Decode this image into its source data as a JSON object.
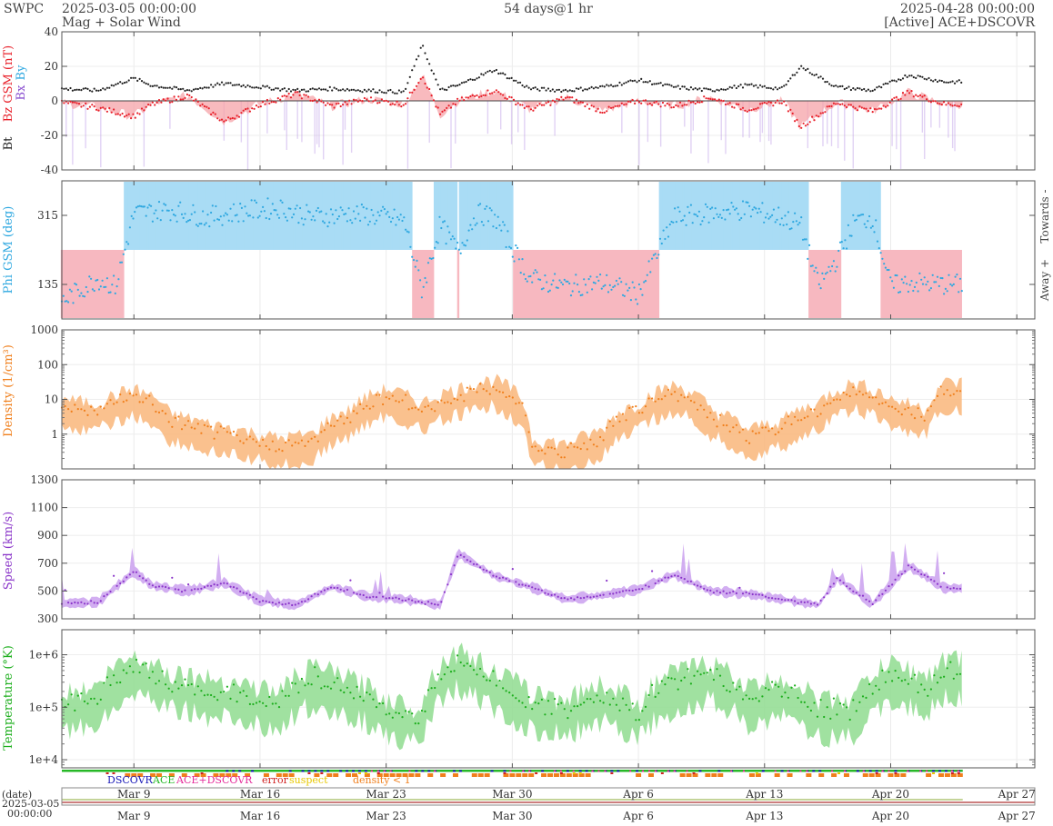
{
  "header": {
    "org": "SWPC",
    "start_time": "2025-03-05 00:00:00",
    "subtitle": "Mag + Solar Wind",
    "span": "54 days@1 hr",
    "end_time": "2025-04-28 00:00:00",
    "source": "[Active] ACE+DSCOVR"
  },
  "colors": {
    "bt": "#222222",
    "bz": "#e8202a",
    "bz_fill": "#f6a3a8",
    "by": "#a97fe0",
    "bx": "#8a4fd0",
    "phi": "#2fa8e0",
    "phi_toward": "#a9dcf5",
    "phi_away": "#f7b8c0",
    "density": "#f07f1c",
    "density_fill": "#f9b67a",
    "speed": "#8a35c9",
    "speed_fill": "#caa0ef",
    "temperature": "#1cae1c",
    "temperature_fill": "#8fdc8f",
    "dscovr": "#1a1ab8",
    "ace": "#27b827",
    "ace_dscovr": "#e52c9b",
    "error": "#d02020",
    "suspect": "#e8c800",
    "density_lt1": "#f07f1c"
  },
  "chart_data": [
    {
      "type": "line",
      "panel": "mag",
      "ylabels": [
        "Bt",
        "Bz GSM (nT)",
        "Bx",
        "By"
      ],
      "ylim": [
        -40,
        40
      ],
      "yticks": [
        "40",
        "20",
        "0",
        "-20",
        "-40"
      ],
      "x_days": [
        0,
        2,
        4,
        5,
        7,
        9,
        11,
        13,
        15,
        17,
        19,
        20,
        21,
        22,
        24,
        26,
        28,
        30,
        32,
        34,
        36,
        38,
        40,
        41,
        43,
        45,
        47,
        49
      ],
      "series": [
        {
          "name": "Bt",
          "values": [
            7,
            6,
            13,
            9,
            6,
            10,
            8,
            6,
            7,
            6,
            5,
            32,
            6,
            9,
            18,
            7,
            6,
            8,
            12,
            8,
            6,
            9,
            7,
            20,
            8,
            6,
            15,
            11
          ]
        },
        {
          "name": "Bz",
          "values": [
            -1,
            -4,
            -9,
            -2,
            3,
            -12,
            -2,
            4,
            -3,
            1,
            -2,
            15,
            -8,
            0,
            6,
            -5,
            2,
            -6,
            0,
            -3,
            2,
            -5,
            0,
            -15,
            -1,
            -6,
            5,
            -2
          ]
        }
      ],
      "grid": true
    },
    {
      "type": "scatter",
      "panel": "phi",
      "ylabel": "Phi GSM (deg)",
      "yticks": [
        "315",
        "135"
      ],
      "ylim": [
        45,
        405
      ],
      "side_labels": [
        "Towards -",
        "Away +"
      ],
      "x_days": [
        0,
        1,
        2,
        3,
        4,
        6,
        8,
        10,
        12,
        14,
        16,
        17,
        18,
        19,
        20,
        21,
        22,
        23,
        24,
        26,
        28,
        30,
        32,
        34,
        36,
        38,
        40,
        41,
        42,
        43,
        44,
        45,
        46,
        47,
        49
      ],
      "values": [
        90,
        120,
        150,
        130,
        320,
        330,
        310,
        325,
        335,
        310,
        320,
        315,
        310,
        300,
        120,
        290,
        220,
        320,
        310,
        150,
        130,
        140,
        110,
        310,
        320,
        330,
        310,
        290,
        130,
        200,
        300,
        310,
        130,
        140,
        135
      ]
    },
    {
      "type": "line",
      "panel": "density",
      "ylabel": "Density (1/cm³)",
      "yscale": "log",
      "ylim": [
        0.1,
        1000
      ],
      "yticks": [
        "1000",
        "100",
        "10",
        "1"
      ],
      "x_days": [
        0,
        2,
        4,
        6,
        8,
        10,
        12,
        14,
        16,
        18,
        20,
        22,
        24,
        26,
        28,
        30,
        32,
        34,
        36,
        38,
        40,
        42,
        44,
        46,
        48,
        49
      ],
      "values": [
        4,
        3,
        8,
        1.5,
        0.8,
        0.5,
        0.3,
        0.4,
        2,
        8,
        3,
        8,
        15,
        0.3,
        0.2,
        0.5,
        3,
        10,
        2,
        0.5,
        1,
        3,
        12,
        4,
        2,
        12
      ]
    },
    {
      "type": "line",
      "panel": "speed",
      "ylabel": "Speed (km/s)",
      "ylim": [
        300,
        1300
      ],
      "yticks": [
        "1300",
        "1100",
        "900",
        "700",
        "500",
        "300"
      ],
      "x_days": [
        0,
        2,
        4,
        5,
        7,
        9,
        11,
        13,
        15,
        17,
        19,
        21,
        22,
        24,
        26,
        28,
        30,
        32,
        34,
        36,
        38,
        40,
        42,
        43,
        45,
        47,
        49
      ],
      "values": [
        410,
        420,
        640,
        540,
        500,
        560,
        430,
        400,
        530,
        460,
        440,
        400,
        770,
        610,
        530,
        440,
        470,
        510,
        620,
        500,
        480,
        440,
        400,
        590,
        410,
        680,
        520
      ]
    },
    {
      "type": "line",
      "panel": "temperature",
      "ylabel": "Temperature (°K)",
      "yscale": "log",
      "ylim": [
        7000,
        3000000
      ],
      "yticks": [
        "1e+6",
        "1e+5",
        "1e+4"
      ],
      "x_days": [
        0,
        2,
        4,
        6,
        8,
        10,
        12,
        14,
        16,
        18,
        20,
        22,
        24,
        26,
        28,
        30,
        32,
        34,
        36,
        38,
        40,
        42,
        44,
        46,
        48,
        49
      ],
      "values": [
        80000,
        100000,
        400000,
        200000,
        150000,
        120000,
        80000,
        250000,
        150000,
        60000,
        40000,
        500000,
        200000,
        80000,
        60000,
        120000,
        50000,
        200000,
        300000,
        100000,
        150000,
        60000,
        60000,
        300000,
        150000,
        350000
      ]
    }
  ],
  "x_axis": {
    "date_label": "(date)",
    "start_label_date": "2025-03-05",
    "start_label_time": "00:00:00",
    "ticks": [
      {
        "label": "Mar 9",
        "day": 4
      },
      {
        "label": "Mar 16",
        "day": 11
      },
      {
        "label": "Mar 23",
        "day": 18
      },
      {
        "label": "Mar 30",
        "day": 25
      },
      {
        "label": "Apr 6",
        "day": 32
      },
      {
        "label": "Apr 13",
        "day": 39
      },
      {
        "label": "Apr 20",
        "day": 46
      },
      {
        "label": "Apr 27",
        "day": 53
      }
    ],
    "data_end_day": 50
  },
  "source_legend": {
    "dscovr": "DSCOVR",
    "ace": "ACE",
    "ace_dscovr": "ACE+DSCOVR",
    "error": "error",
    "suspect": "suspect",
    "density_lt1": "density < 1"
  }
}
